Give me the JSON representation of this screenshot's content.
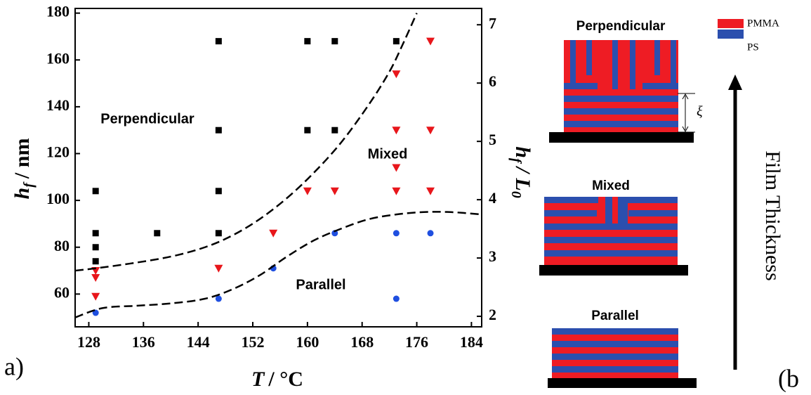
{
  "chart_data": {
    "type": "scatter",
    "xlabel": {
      "symbol": "T",
      "unit": "/ °C"
    },
    "ylabel": {
      "symbol": "h",
      "sub": "f",
      "unit": "/ nm"
    },
    "y2label": {
      "symbol": "h",
      "sub": "f",
      "mid": "/ L",
      "sub2": "0"
    },
    "xlim": [
      126,
      185.5
    ],
    "ylim": [
      46,
      182
    ],
    "y2lim": [
      1.82,
      7.28
    ],
    "xticks": [
      128,
      136,
      144,
      152,
      160,
      168,
      176,
      184
    ],
    "yticks": [
      60,
      80,
      100,
      120,
      140,
      160,
      180
    ],
    "y2ticks": [
      2,
      3,
      4,
      5,
      6,
      7
    ],
    "series": [
      {
        "marker": "square",
        "color": "#000000",
        "x": [
          129,
          129,
          129,
          129,
          138,
          147,
          147,
          147,
          147,
          160,
          164,
          160,
          164,
          173
        ],
        "values": [
          104,
          86,
          80,
          74,
          86,
          168,
          130,
          104,
          86,
          168,
          168,
          130,
          130,
          168
        ]
      },
      {
        "marker": "triangle-down",
        "color": "#e8161b",
        "x": [
          129,
          129,
          129,
          147,
          155,
          160,
          164,
          173,
          173,
          173,
          173,
          178,
          178,
          178
        ],
        "values": [
          70,
          67,
          59,
          71,
          86,
          104,
          104,
          154,
          130,
          114,
          104,
          168,
          130,
          104
        ]
      },
      {
        "marker": "circle",
        "color": "#1f4fe0",
        "x": [
          129,
          147,
          155,
          164,
          173,
          178,
          173
        ],
        "values": [
          52,
          58,
          71,
          86,
          86,
          86,
          58
        ]
      },
      {
        "marker": "dashed-line",
        "color": "#000000",
        "x": [
          126,
          129,
          134,
          140,
          145,
          149,
          153,
          157,
          161,
          165,
          169,
          172,
          174,
          176
        ],
        "values": [
          70,
          71,
          73,
          76,
          80,
          85,
          92,
          101,
          112,
          125,
          141,
          155,
          167,
          180
        ]
      },
      {
        "marker": "dashed-line",
        "color": "#000000",
        "x": [
          126,
          130,
          135,
          140,
          145,
          149,
          153,
          157,
          161,
          165,
          169,
          173,
          177,
          181,
          185.5
        ],
        "values": [
          50,
          54,
          55,
          56,
          58,
          62,
          68,
          76,
          83,
          88,
          92,
          94,
          95,
          95,
          94
        ]
      }
    ],
    "annotations": [
      "Perpendicular",
      "Mixed",
      "Parallel"
    ],
    "panel_label": "a)"
  },
  "schematic": {
    "labels": [
      "Perpendicular",
      "Mixed",
      "Parallel"
    ],
    "legend": [
      "PMMA",
      "PS"
    ],
    "xi": "ξ",
    "axis_label": "Film Thickness",
    "panel_label": "(b"
  }
}
